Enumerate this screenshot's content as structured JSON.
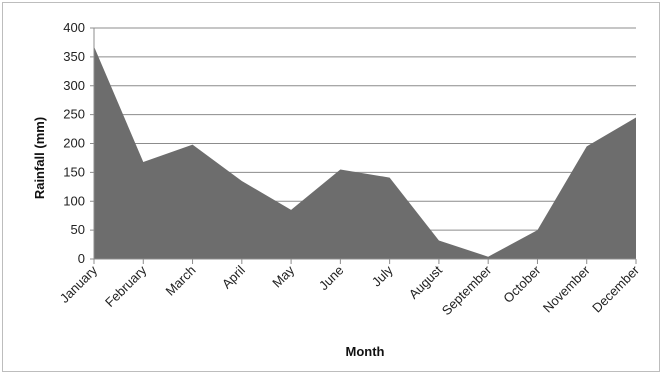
{
  "chart_data": {
    "type": "area",
    "title": "",
    "xlabel": "Month",
    "ylabel": "Rainfall (mm)",
    "categories": [
      "January",
      "February",
      "March",
      "April",
      "May",
      "June",
      "July",
      "August",
      "September",
      "October",
      "November",
      "December"
    ],
    "values": [
      368,
      168,
      198,
      135,
      85,
      155,
      141,
      32,
      4,
      50,
      195,
      245
    ],
    "ylim": [
      0,
      400
    ],
    "yticks": [
      0,
      50,
      100,
      150,
      200,
      250,
      300,
      350,
      400
    ],
    "grid": true,
    "legend": "none",
    "colors": {
      "area": "#6d6d6d",
      "grid": "#8c8c8c",
      "axis": "#8c8c8c"
    }
  }
}
